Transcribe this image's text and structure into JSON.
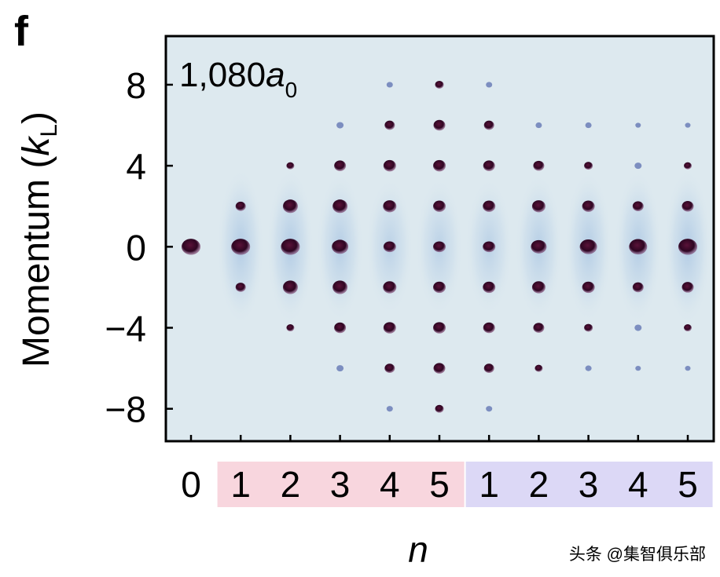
{
  "panel_label": "f",
  "annotation": {
    "base": "1,080",
    "var": "a",
    "sub": "0"
  },
  "y_axis": {
    "label_main": "Momentum (",
    "label_var": "k",
    "label_sub": "L",
    "label_close": ")"
  },
  "x_axis": {
    "label": "n"
  },
  "watermark": "头条 @集智俱乐部",
  "colors": {
    "background_plot": "#dde9ef",
    "halo": "#9fbfe0",
    "spot": "#3a0a2a",
    "band_red": "#f8d6de",
    "band_blue": "#dcd8f6"
  },
  "chart_data": {
    "type": "scatter",
    "title": "",
    "ylabel": "Momentum (kL)",
    "xlabel": "n",
    "ylim": [
      -9.6,
      10.4
    ],
    "yticks": [
      8,
      4,
      0,
      -4,
      -8
    ],
    "ytick_labels": [
      "8",
      "4",
      "0",
      "−4",
      "−8"
    ],
    "x_categories": [
      "0",
      "1",
      "2",
      "3",
      "4",
      "5",
      "1",
      "2",
      "3",
      "4",
      "5"
    ],
    "x_groups": [
      {
        "name": "",
        "start": 1,
        "end": 5,
        "color": "band_red"
      },
      {
        "name": "",
        "start": 6,
        "end": 10,
        "color": "band_blue"
      }
    ],
    "columns": [
      {
        "n": "0",
        "spots": [
          {
            "k": 0,
            "s": 1.0
          }
        ]
      },
      {
        "n": "1",
        "spots": [
          {
            "k": 0,
            "s": 1.0
          },
          {
            "k": 2,
            "s": 0.45
          },
          {
            "k": -2,
            "s": 0.45
          }
        ]
      },
      {
        "n": "2",
        "spots": [
          {
            "k": 0,
            "s": 1.0
          },
          {
            "k": 2,
            "s": 0.75
          },
          {
            "k": -2,
            "s": 0.75
          },
          {
            "k": 4,
            "s": 0.3
          },
          {
            "k": -4,
            "s": 0.3
          }
        ]
      },
      {
        "n": "3",
        "spots": [
          {
            "k": 0,
            "s": 0.85
          },
          {
            "k": 2,
            "s": 0.75
          },
          {
            "k": -2,
            "s": 0.75
          },
          {
            "k": 4,
            "s": 0.55
          },
          {
            "k": -4,
            "s": 0.55
          },
          {
            "k": 6,
            "s": 0.25
          },
          {
            "k": -6,
            "s": 0.25
          }
        ]
      },
      {
        "n": "4",
        "spots": [
          {
            "k": 0,
            "s": 0.6
          },
          {
            "k": 2,
            "s": 0.65
          },
          {
            "k": -2,
            "s": 0.65
          },
          {
            "k": 4,
            "s": 0.6
          },
          {
            "k": -4,
            "s": 0.6
          },
          {
            "k": 6,
            "s": 0.45
          },
          {
            "k": -6,
            "s": 0.45
          },
          {
            "k": 8,
            "s": 0.2
          },
          {
            "k": -8,
            "s": 0.2
          }
        ]
      },
      {
        "n": "5",
        "spots": [
          {
            "k": 0,
            "s": 0.6
          },
          {
            "k": 2,
            "s": 0.6
          },
          {
            "k": -2,
            "s": 0.6
          },
          {
            "k": 4,
            "s": 0.6
          },
          {
            "k": -4,
            "s": 0.6
          },
          {
            "k": 6,
            "s": 0.55
          },
          {
            "k": -6,
            "s": 0.55
          },
          {
            "k": 8,
            "s": 0.35
          },
          {
            "k": -8,
            "s": 0.35
          }
        ]
      },
      {
        "n": "1",
        "spots": [
          {
            "k": 0,
            "s": 0.6
          },
          {
            "k": 2,
            "s": 0.6
          },
          {
            "k": -2,
            "s": 0.6
          },
          {
            "k": 4,
            "s": 0.55
          },
          {
            "k": -4,
            "s": 0.55
          },
          {
            "k": 6,
            "s": 0.45
          },
          {
            "k": -6,
            "s": 0.45
          },
          {
            "k": 8,
            "s": 0.2
          },
          {
            "k": -8,
            "s": 0.2
          }
        ]
      },
      {
        "n": "2",
        "spots": [
          {
            "k": 0,
            "s": 0.8
          },
          {
            "k": 2,
            "s": 0.65
          },
          {
            "k": -2,
            "s": 0.65
          },
          {
            "k": 4,
            "s": 0.5
          },
          {
            "k": -4,
            "s": 0.5
          },
          {
            "k": 6,
            "s": 0.2
          },
          {
            "k": -6,
            "s": 0.3
          }
        ]
      },
      {
        "n": "3",
        "spots": [
          {
            "k": 0,
            "s": 0.9
          },
          {
            "k": 2,
            "s": 0.6
          },
          {
            "k": -2,
            "s": 0.6
          },
          {
            "k": 4,
            "s": 0.35
          },
          {
            "k": -4,
            "s": 0.35
          },
          {
            "k": 6,
            "s": 0.2
          },
          {
            "k": -6,
            "s": 0.2
          }
        ]
      },
      {
        "n": "4",
        "spots": [
          {
            "k": 0,
            "s": 0.95
          },
          {
            "k": 2,
            "s": 0.5
          },
          {
            "k": -2,
            "s": 0.5
          },
          {
            "k": 4,
            "s": 0.25
          },
          {
            "k": -4,
            "s": 0.25
          },
          {
            "k": 6,
            "s": 0.15
          },
          {
            "k": -6,
            "s": 0.15
          }
        ]
      },
      {
        "n": "5",
        "spots": [
          {
            "k": 0,
            "s": 1.0
          },
          {
            "k": 2,
            "s": 0.55
          },
          {
            "k": -2,
            "s": 0.55
          },
          {
            "k": 4,
            "s": 0.3
          },
          {
            "k": -4,
            "s": 0.3
          },
          {
            "k": 6,
            "s": 0.15
          },
          {
            "k": -6,
            "s": 0.15
          }
        ]
      }
    ],
    "grid": false,
    "legend": "none"
  }
}
